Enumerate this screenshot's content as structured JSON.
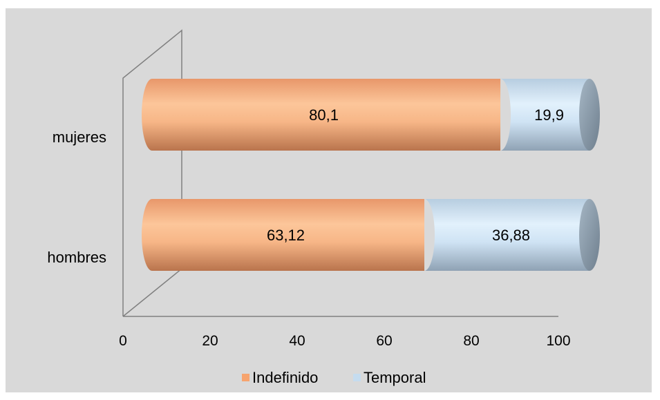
{
  "chart_data": {
    "type": "bar",
    "orientation": "horizontal",
    "stacked": true,
    "percent_stacked": true,
    "three_d": true,
    "categories": [
      "hombres",
      "mujeres"
    ],
    "series": [
      {
        "name": "Indefinido",
        "values": [
          63.12,
          80.1
        ],
        "labels": [
          "63,12",
          "80,1"
        ],
        "color": "#f0a878"
      },
      {
        "name": "Temporal",
        "values": [
          36.88,
          19.9
        ],
        "labels": [
          "36,88",
          "19,9"
        ],
        "color": "#c5dcef"
      }
    ],
    "x_ticks": [
      "0",
      "20",
      "40",
      "60",
      "80",
      "100"
    ],
    "xlim": [
      0,
      100
    ],
    "legend_position": "bottom",
    "grid": false,
    "background": "#d9d9d9"
  }
}
